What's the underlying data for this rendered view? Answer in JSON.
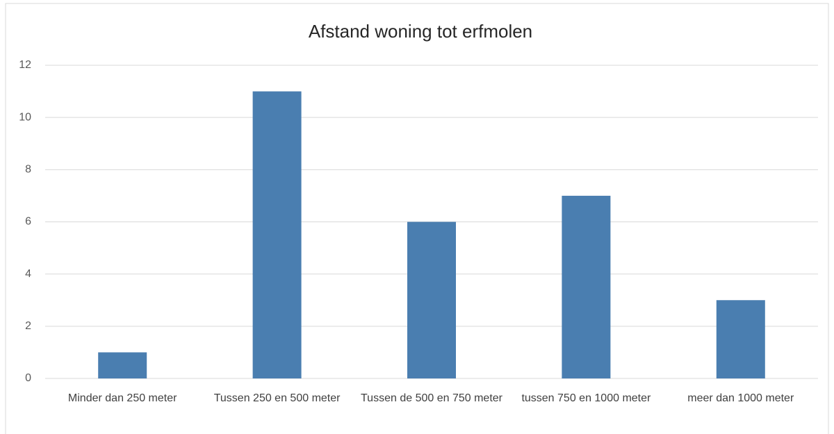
{
  "chart_data": {
    "type": "bar",
    "title": "Afstand woning tot erfmolen",
    "categories": [
      "Minder dan 250 meter",
      "Tussen 250 en 500 meter",
      "Tussen de 500 en 750 meter",
      "tussen 750 en 1000 meter",
      "meer dan 1000 meter"
    ],
    "values": [
      1,
      11,
      6,
      7,
      3
    ],
    "color": "#4a7eb0",
    "ylim": [
      0,
      12
    ],
    "yticks": [
      0,
      2,
      4,
      6,
      8,
      10,
      12
    ],
    "grid": true
  }
}
